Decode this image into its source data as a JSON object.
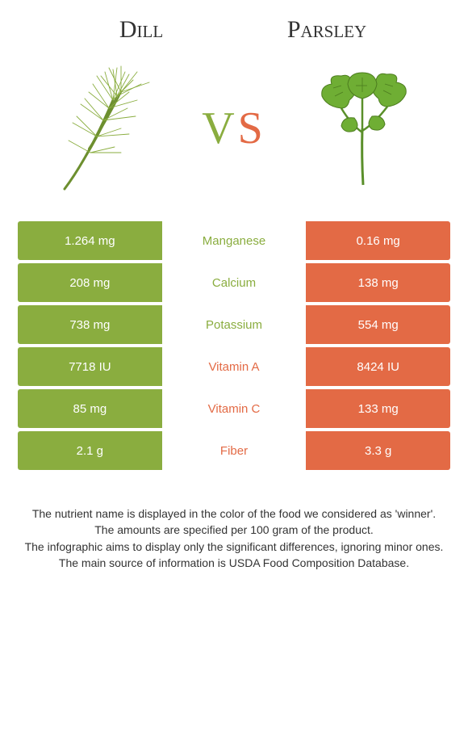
{
  "colors": {
    "dill": "#8aad3f",
    "parsley": "#e36a45",
    "background": "#ffffff",
    "text": "#333333"
  },
  "herbs": {
    "left": {
      "name": "Dill"
    },
    "right": {
      "name": "Parsley"
    }
  },
  "vs": {
    "v": "V",
    "s": "S"
  },
  "rows": [
    {
      "left": "1.264 mg",
      "label": "Manganese",
      "right": "0.16 mg",
      "winner": "dill"
    },
    {
      "left": "208 mg",
      "label": "Calcium",
      "right": "138 mg",
      "winner": "dill"
    },
    {
      "left": "738 mg",
      "label": "Potassium",
      "right": "554 mg",
      "winner": "dill"
    },
    {
      "left": "7718 IU",
      "label": "Vitamin A",
      "right": "8424 IU",
      "winner": "parsley"
    },
    {
      "left": "85 mg",
      "label": "Vitamin C",
      "right": "133 mg",
      "winner": "parsley"
    },
    {
      "left": "2.1 g",
      "label": "Fiber",
      "right": "3.3 g",
      "winner": "parsley"
    }
  ],
  "footer": {
    "l1": "The nutrient name is displayed in the color of the food we considered as 'winner'.",
    "l2": "The amounts are specified per 100 gram of the product.",
    "l3": "The infographic aims to display only the significant differences, ignoring minor ones.",
    "l4": "The main source of information is USDA Food Composition Database."
  }
}
